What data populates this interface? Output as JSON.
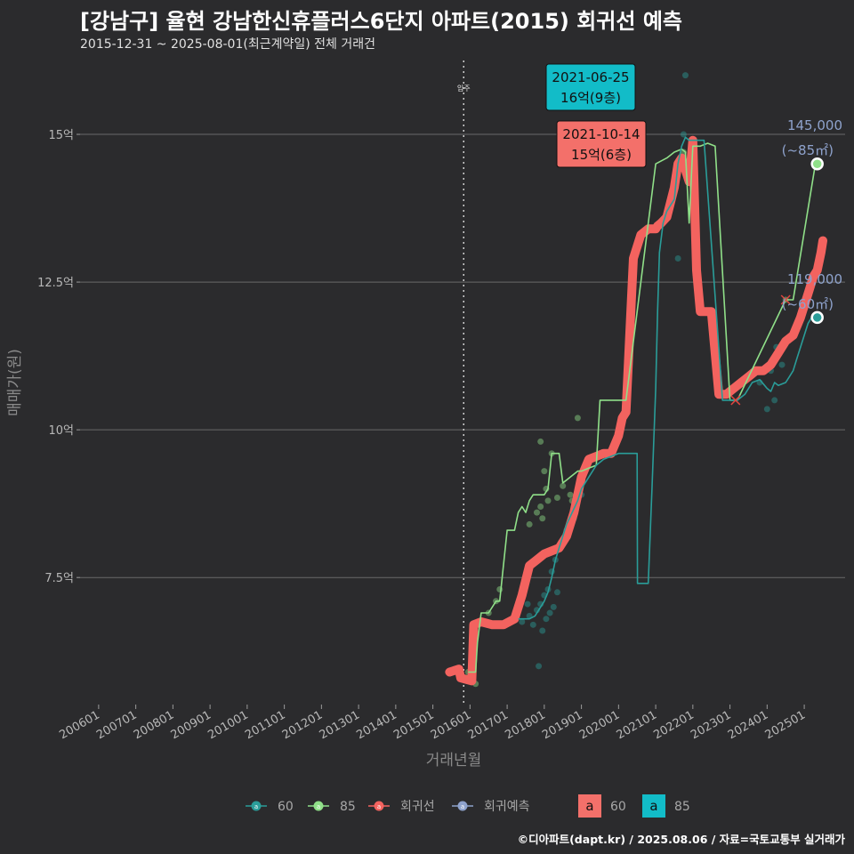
{
  "title": "[강남구] 율현 강남한신휴플러스6단지 아파트(2015) 회귀선 예측",
  "subtitle": "2015-12-31 ~ 2025-08-01(최근계약일) 전체 거래건",
  "footer": "©디아파트(dapt.kr) / 2025.08.06 / 자료=국토교통부 실거래가",
  "colors": {
    "s60": "#2a9d99",
    "s85": "#90e089",
    "regression": "#f3635f",
    "forecast": "#8ea2cc",
    "box60": "#f3706a",
    "box85": "#12bcc8",
    "grid": "#6a6a6a",
    "background": "#2b2b2d"
  },
  "chart_data": {
    "type": "line",
    "xlabel": "거래년월",
    "ylabel": "매매가(원)",
    "xlim": [
      2005.5,
      2026.1
    ],
    "ylim": [
      5.35,
      16.25
    ],
    "x_ticks": [
      {
        "x": 2006.0,
        "label": "200601"
      },
      {
        "x": 2007.0,
        "label": "200701"
      },
      {
        "x": 2008.0,
        "label": "200801"
      },
      {
        "x": 2009.0,
        "label": "200901"
      },
      {
        "x": 2010.0,
        "label": "201001"
      },
      {
        "x": 2011.0,
        "label": "201101"
      },
      {
        "x": 2012.0,
        "label": "201201"
      },
      {
        "x": 2013.0,
        "label": "201301"
      },
      {
        "x": 2014.0,
        "label": "201401"
      },
      {
        "x": 2015.0,
        "label": "201501"
      },
      {
        "x": 2016.0,
        "label": "201601"
      },
      {
        "x": 2017.0,
        "label": "201701"
      },
      {
        "x": 2018.0,
        "label": "201801"
      },
      {
        "x": 2019.0,
        "label": "201901"
      },
      {
        "x": 2020.0,
        "label": "202001"
      },
      {
        "x": 2021.0,
        "label": "202101"
      },
      {
        "x": 2022.0,
        "label": "202201"
      },
      {
        "x": 2023.0,
        "label": "202301"
      },
      {
        "x": 2024.0,
        "label": "202401"
      },
      {
        "x": 2025.0,
        "label": "202501"
      }
    ],
    "y_ticks": [
      {
        "y": 7.5,
        "label": "7.5억"
      },
      {
        "y": 10,
        "label": "10억"
      },
      {
        "y": 12.5,
        "label": "12.5억"
      },
      {
        "y": 15,
        "label": "15억"
      }
    ],
    "vline": {
      "x": 2015.83,
      "label": "입주"
    },
    "series": [
      {
        "name": "60",
        "kind": "line",
        "x": [
          2017.3,
          2017.6,
          2017.75,
          2017.9,
          2018.0,
          2018.1,
          2018.2,
          2018.3,
          2018.4,
          2018.5,
          2018.6,
          2018.75,
          2018.9,
          2019.0,
          2019.2,
          2019.4,
          2019.6,
          2019.8,
          2020.0,
          2020.2,
          2020.4,
          2020.5,
          2020.51,
          2020.7,
          2020.8,
          2020.9,
          2021.0,
          2021.05,
          2021.1,
          2021.2,
          2021.3,
          2021.4,
          2021.5,
          2021.6,
          2021.7,
          2021.8,
          2021.9,
          2022.0,
          2022.3,
          2022.8,
          2023.0,
          2023.2,
          2023.4,
          2023.6,
          2023.8,
          2024.0,
          2024.1,
          2024.2,
          2024.3,
          2024.5,
          2024.6,
          2024.7,
          2024.8,
          2024.9,
          2025.0,
          2025.1,
          2025.2,
          2025.3
        ],
        "y": [
          6.8,
          6.8,
          6.85,
          7.0,
          7.1,
          7.25,
          7.5,
          7.8,
          8.0,
          8.2,
          8.4,
          8.6,
          8.8,
          9.0,
          9.2,
          9.4,
          9.5,
          9.55,
          9.6,
          9.6,
          9.6,
          9.6,
          7.4,
          7.4,
          7.4,
          9.0,
          10.7,
          12.0,
          13.0,
          13.5,
          13.7,
          13.8,
          13.9,
          14.5,
          14.8,
          14.95,
          14.9,
          14.9,
          14.9,
          10.5,
          10.5,
          10.5,
          10.6,
          10.8,
          10.85,
          10.7,
          10.65,
          10.8,
          10.75,
          10.8,
          10.9,
          11.0,
          11.2,
          11.4,
          11.6,
          11.8,
          11.9,
          11.9
        ]
      },
      {
        "name": "85",
        "kind": "line",
        "x": [
          2015.95,
          2016.15,
          2016.2,
          2016.3,
          2016.5,
          2016.7,
          2016.8,
          2017.0,
          2017.2,
          2017.3,
          2017.4,
          2017.5,
          2017.6,
          2017.7,
          2017.8,
          2018.0,
          2018.1,
          2018.2,
          2018.3,
          2018.4,
          2018.5,
          2018.6,
          2018.7,
          2018.9,
          2019.0,
          2019.2,
          2019.4,
          2019.5,
          2019.6,
          2019.8,
          2020.0,
          2020.2,
          2021.0,
          2021.3,
          2021.5,
          2021.7,
          2021.8,
          2021.9,
          2022.0,
          2022.2,
          2022.4,
          2022.6,
          2023.0,
          2023.1,
          2023.2,
          2024.5,
          2024.7,
          2025.3,
          2025.35
        ],
        "y": [
          5.9,
          5.9,
          6.4,
          6.9,
          6.9,
          7.1,
          7.1,
          8.3,
          8.3,
          8.6,
          8.7,
          8.6,
          8.8,
          8.9,
          8.9,
          8.9,
          9.0,
          9.6,
          9.6,
          9.6,
          9.1,
          9.15,
          9.2,
          9.3,
          9.3,
          9.35,
          9.4,
          10.5,
          10.5,
          10.5,
          10.5,
          10.5,
          14.5,
          14.6,
          14.7,
          14.75,
          14.7,
          13.5,
          14.8,
          14.8,
          14.85,
          14.8,
          10.5,
          10.5,
          10.5,
          12.2,
          12.2,
          14.5,
          14.5
        ]
      },
      {
        "name": "회귀선",
        "kind": "thick-line",
        "x": [
          2015.45,
          2015.7,
          2015.75,
          2016.05,
          2016.1,
          2016.3,
          2016.6,
          2016.9,
          2017.2,
          2017.4,
          2017.6,
          2017.8,
          2018.0,
          2018.2,
          2018.4,
          2018.6,
          2018.8,
          2019.0,
          2019.2,
          2019.4,
          2019.6,
          2019.8,
          2020.0,
          2020.1,
          2020.2,
          2020.4,
          2020.6,
          2020.8,
          2021.0,
          2021.05,
          2021.15,
          2021.3,
          2021.5,
          2021.6,
          2021.7,
          2021.8,
          2021.9,
          2022.0,
          2022.1,
          2022.2,
          2022.3,
          2022.5,
          2022.7,
          2022.9,
          2023.1,
          2023.3,
          2023.5,
          2023.7,
          2023.9,
          2024.1,
          2024.3,
          2024.5,
          2024.7,
          2024.9,
          2025.1,
          2025.25,
          2025.35,
          2025.45,
          2025.5
        ],
        "y": [
          5.9,
          5.95,
          5.8,
          5.75,
          6.7,
          6.75,
          6.7,
          6.7,
          6.8,
          7.2,
          7.7,
          7.8,
          7.9,
          7.95,
          8.0,
          8.2,
          8.6,
          9.2,
          9.5,
          9.55,
          9.6,
          9.6,
          9.9,
          10.2,
          10.3,
          12.9,
          13.3,
          13.4,
          13.4,
          13.45,
          13.5,
          13.6,
          14.1,
          14.5,
          14.6,
          14.4,
          14.2,
          14.9,
          12.7,
          12.0,
          12.0,
          12.0,
          10.6,
          10.6,
          10.7,
          10.8,
          10.9,
          11.0,
          11.0,
          11.1,
          11.3,
          11.5,
          11.6,
          11.9,
          12.3,
          12.6,
          12.7,
          13.0,
          13.2
        ]
      }
    ],
    "scatter_60": [
      [
        2017.6,
        6.85
      ],
      [
        2017.7,
        6.7
      ],
      [
        2017.8,
        6.95
      ],
      [
        2017.9,
        7.05
      ],
      [
        2017.95,
        6.6
      ],
      [
        2018.0,
        7.2
      ],
      [
        2018.1,
        7.3
      ],
      [
        2018.15,
        6.9
      ],
      [
        2018.2,
        7.6
      ],
      [
        2018.25,
        7.0
      ],
      [
        2018.3,
        7.8
      ],
      [
        2018.35,
        7.25
      ],
      [
        2018.45,
        8.1
      ],
      [
        2018.6,
        8.3
      ],
      [
        2018.8,
        8.5
      ],
      [
        2019.0,
        8.9
      ],
      [
        2017.4,
        6.75
      ],
      [
        2017.55,
        7.05
      ],
      [
        2017.85,
        6.0
      ],
      [
        2018.05,
        6.8
      ],
      [
        2021.6,
        12.9
      ],
      [
        2021.75,
        15.0
      ],
      [
        2021.8,
        16.0
      ],
      [
        2024.0,
        10.35
      ],
      [
        2024.2,
        10.5
      ],
      [
        2024.1,
        11.0
      ],
      [
        2024.25,
        11.4
      ],
      [
        2024.4,
        11.1
      ],
      [
        2023.8,
        10.8
      ]
    ],
    "scatter_85": [
      [
        2015.95,
        5.9
      ],
      [
        2016.15,
        5.7
      ],
      [
        2016.5,
        6.9
      ],
      [
        2016.7,
        7.1
      ],
      [
        2016.8,
        7.3
      ],
      [
        2017.6,
        8.4
      ],
      [
        2017.8,
        8.6
      ],
      [
        2017.9,
        8.7
      ],
      [
        2017.95,
        8.5
      ],
      [
        2018.0,
        9.3
      ],
      [
        2018.05,
        9.0
      ],
      [
        2018.1,
        8.8
      ],
      [
        2017.9,
        9.8
      ],
      [
        2018.2,
        9.6
      ],
      [
        2018.35,
        8.85
      ],
      [
        2018.5,
        9.05
      ],
      [
        2018.7,
        8.9
      ],
      [
        2018.9,
        10.2
      ],
      [
        2018.75,
        8.8
      ],
      [
        2021.6,
        14.5
      ],
      [
        2021.75,
        14.7
      ],
      [
        2024.5,
        12.2
      ]
    ],
    "crosses": [
      [
        2023.15,
        10.5
      ],
      [
        2024.5,
        12.2
      ]
    ],
    "end_points": [
      {
        "series": "85",
        "x": 2025.35,
        "y": 14.5,
        "label_value": "145,000",
        "label_area": "(~85㎡)"
      },
      {
        "series": "60",
        "x": 2025.35,
        "y": 11.9,
        "label_value": "119,000",
        "label_area": "(~60㎡)"
      }
    ],
    "annotations": [
      {
        "series": "85",
        "x": 2021.5,
        "y": 16.0,
        "date": "2021-06-25",
        "price": "16억(9층)"
      },
      {
        "series": "60",
        "x": 2021.8,
        "y": 15.0,
        "date": "2021-10-14",
        "price": "15억(6층)"
      }
    ],
    "legend": [
      {
        "key": "s60",
        "label": "60"
      },
      {
        "key": "s85",
        "label": "85"
      },
      {
        "key": "regression",
        "label": "회귀선"
      },
      {
        "key": "forecast",
        "label": "회귀예측"
      }
    ],
    "legend_boxes": [
      {
        "key": "box60",
        "letter": "a",
        "label": "60"
      },
      {
        "key": "box85",
        "letter": "a",
        "label": "85"
      }
    ]
  }
}
